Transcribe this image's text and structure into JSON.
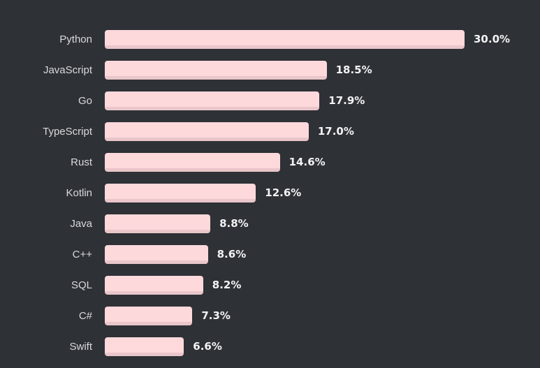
{
  "background_color": "#2e3136",
  "chart_data": {
    "type": "bar",
    "orientation": "horizontal",
    "title": "",
    "xlabel": "",
    "ylabel": "",
    "categories": [
      "Python",
      "JavaScript",
      "Go",
      "TypeScript",
      "Rust",
      "Kotlin",
      "Java",
      "C++",
      "SQL",
      "C#",
      "Swift"
    ],
    "values": [
      30.0,
      18.5,
      17.9,
      17.0,
      14.6,
      12.6,
      8.8,
      8.6,
      8.2,
      7.3,
      6.6
    ],
    "value_labels": [
      "30.0%",
      "18.5%",
      "17.9%",
      "17.0%",
      "14.6%",
      "12.6%",
      "8.8%",
      "8.6%",
      "8.2%",
      "7.3%",
      "6.6%"
    ],
    "xlim": [
      0,
      30
    ],
    "grid": false,
    "legend": false,
    "axis_lines": false,
    "bar_color": "#fdd9dc",
    "bar_edge_color": "#e9c6ca",
    "label_color": "#d9dadc",
    "value_color": "#f2f3f4"
  }
}
